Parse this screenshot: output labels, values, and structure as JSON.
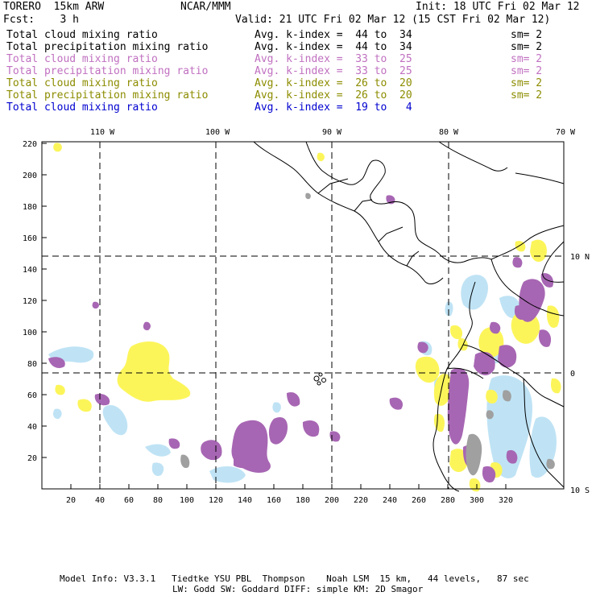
{
  "header": {
    "model": "TORERO  15km ARW",
    "org": "NCAR/MMM",
    "init": "Init: 18 UTC Fri 02 Mar 12",
    "fcst": "Fcst:    3 h",
    "valid": "Valid: 21 UTC Fri 02 Mar 12 (15 CST Fri 02 Mar 12)"
  },
  "legend": [
    {
      "field": "Total cloud mixing ratio",
      "kindex": "Avg. k-index =  44 to  34",
      "sm": "sm= 2",
      "color": "#000000"
    },
    {
      "field": "Total precipitation mixing ratio",
      "kindex": "Avg. k-index =  44 to  34",
      "sm": "sm= 2",
      "color": "#000000"
    },
    {
      "field": "Total cloud mixing ratio",
      "kindex": "Avg. k-index =  33 to  25",
      "sm": "sm= 2",
      "color": "#c070c0"
    },
    {
      "field": "Total precipitation mixing ratio",
      "kindex": "Avg. k-index =  33 to  25",
      "sm": "sm= 2",
      "color": "#c070c0"
    },
    {
      "field": "Total cloud mixing ratio",
      "kindex": "Avg. k-index =  26 to  20",
      "sm": "sm= 2",
      "color": "#8c8c00"
    },
    {
      "field": "Total precipitation mixing ratio",
      "kindex": "Avg. k-index =  26 to  20",
      "sm": "sm= 2",
      "color": "#8c8c00"
    },
    {
      "field": "Total cloud mixing ratio",
      "kindex": "Avg. k-index =  19 to   4",
      "sm": "",
      "color": "#0000d0"
    }
  ],
  "axes": {
    "top_labels": [
      "110 W",
      "100 W",
      "90 W",
      "80 W",
      "70 W"
    ],
    "right_labels": [
      "10 N",
      "0",
      "10 S"
    ],
    "x_ticks": [
      "20",
      "40",
      "60",
      "80",
      "100",
      "120",
      "140",
      "160",
      "180",
      "200",
      "220",
      "240",
      "260",
      "280",
      "300",
      "320"
    ],
    "y_ticks": [
      "20",
      "40",
      "60",
      "80",
      "100",
      "120",
      "140",
      "160",
      "180",
      "200",
      "220"
    ]
  },
  "footer": {
    "line1": "Model Info: V3.3.1   Tiedtke YSU PBL  Thompson    Noah LSM  15 km,   44 levels,   87 sec",
    "line2": "LW: Godd SW: Goddard DIFF: simple KM: 2D Smagor"
  },
  "colors": {
    "purple": "#a766b3",
    "yellow": "#fcf55a",
    "lightblue": "#bfe3f5",
    "gray": "#a0a0a0"
  }
}
